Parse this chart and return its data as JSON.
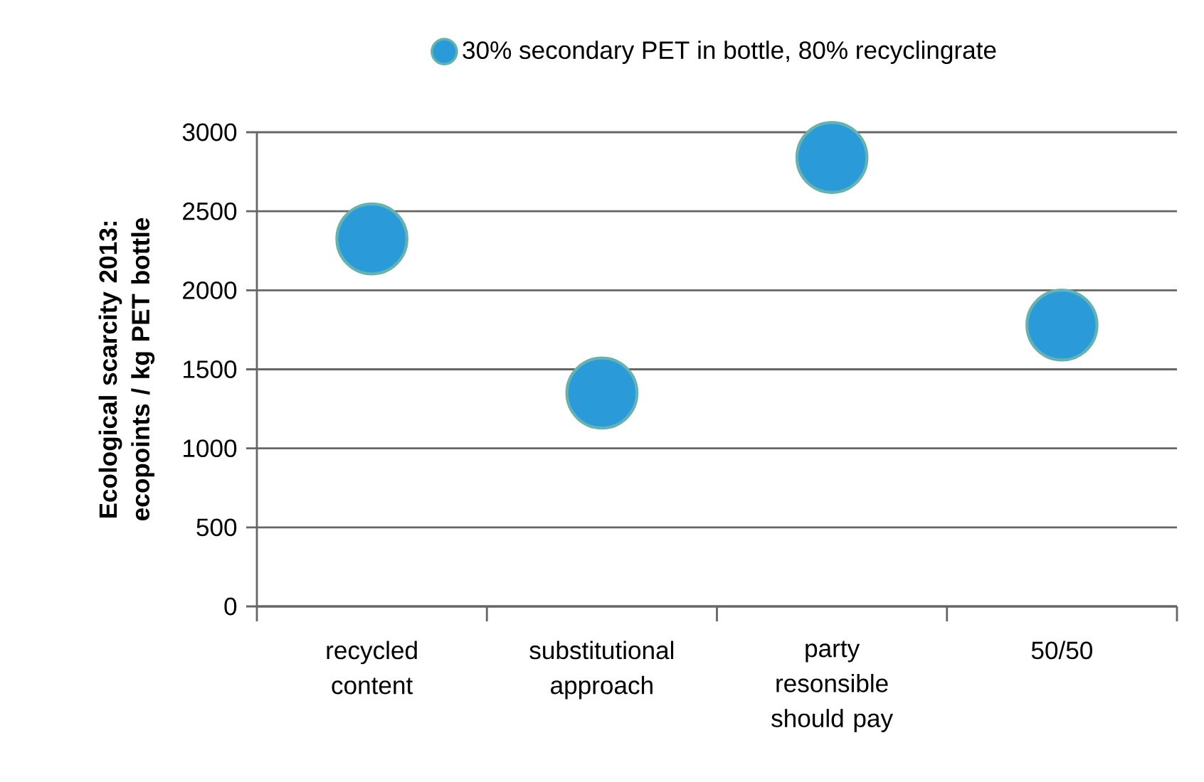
{
  "chart_data": {
    "type": "scatter",
    "ylabel": "Ecological scarcity 2013: ecopoints / kg PET bottle",
    "categories": [
      "recycled content",
      "substitutional approach",
      "party resonsible should pay",
      "50/50"
    ],
    "series": [
      {
        "name": "30% secondary PET in bottle, 80% recyclingrate",
        "color": "#2a9ad8",
        "values": [
          2325,
          1350,
          2840,
          1780
        ]
      }
    ],
    "ylim": [
      0,
      3000
    ],
    "yticks": [
      0,
      500,
      1000,
      1500,
      2000,
      2500,
      3000
    ],
    "grid": "y",
    "legend": "top",
    "marker": "circle"
  }
}
